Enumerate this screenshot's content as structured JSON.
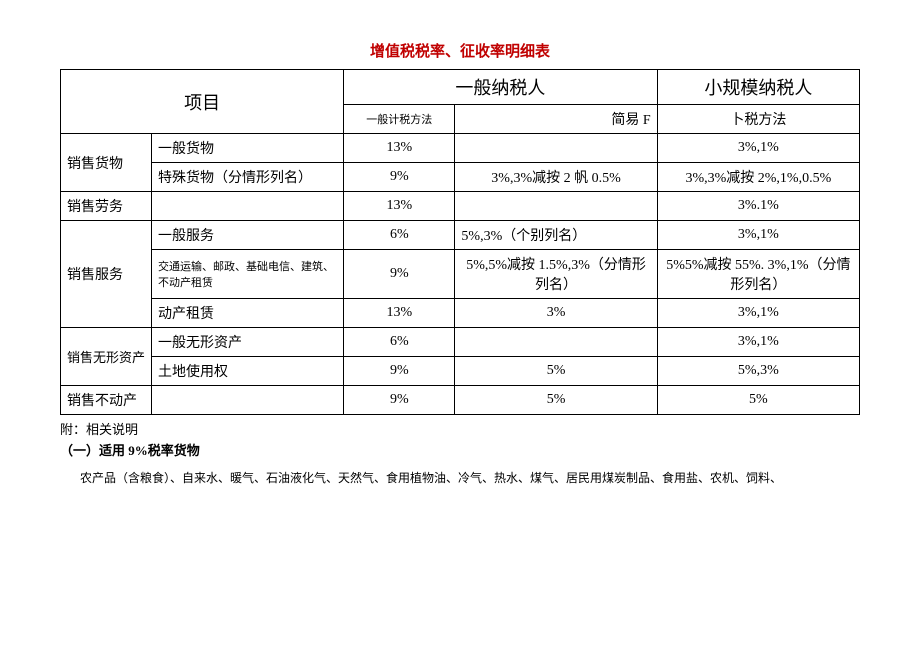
{
  "title": "增值税税率、征收率明细表",
  "title_color": "#c00000",
  "header": {
    "col_project": "项目",
    "col_general": "一般纳税人",
    "col_small": "小规模纳税人",
    "sub_general_method": "一般计税方法",
    "sub_simple_left": "简易 F",
    "sub_simple_right": "卜税方法"
  },
  "rows": {
    "sell_goods": {
      "label": "销售货物",
      "r1_item": "一般货物",
      "r1_gen": "13%",
      "r1_simple": "",
      "r1_small": "3%,1%",
      "r2_item": "特殊货物（分情形列名）",
      "r2_gen": "9%",
      "r2_simple": "3%,3%减按 2 帆 0.5%",
      "r2_small": "3%,3%减按 2%,1%,0.5%"
    },
    "sell_labor": {
      "label": "销售劳务",
      "item": "",
      "gen": "13%",
      "simple": "",
      "small": "3%.1%"
    },
    "sell_service": {
      "label": "销售服务",
      "r1_item": "一般服务",
      "r1_gen": "6%",
      "r1_simple": "5%,3%（个别列名）",
      "r1_small": "3%,1%",
      "r2_item": "交通运输、邮政、基础电信、建筑、不动产租赁",
      "r2_gen": "9%",
      "r2_simple": "5%,5%减按 1.5%,3%（分情形列名）",
      "r2_small": "5%5%减按 55%. 3%,1%（分情形列名）",
      "r3_item": "动产租赁",
      "r3_gen": "13%",
      "r3_simple": "3%",
      "r3_small": "3%,1%"
    },
    "sell_intangible": {
      "label": "销售无形资产",
      "r1_item": "一般无形资产",
      "r1_gen": "6%",
      "r1_simple": "",
      "r1_small": "3%,1%",
      "r2_item": "土地使用权",
      "r2_gen": "9%",
      "r2_simple": "5%",
      "r2_small": "5%,3%"
    },
    "sell_realestate": {
      "label": "销售不动产",
      "item": "",
      "gen": "9%",
      "simple": "5%",
      "small": "5%"
    }
  },
  "notes": {
    "attach": "附：相关说明",
    "section1": "（一）适用 9%税率货物",
    "body1": "农产品（含粮食）、自来水、暖气、石油液化气、天然气、食用植物油、冷气、热水、煤气、居民用煤炭制品、食用盐、农机、饲料、"
  }
}
